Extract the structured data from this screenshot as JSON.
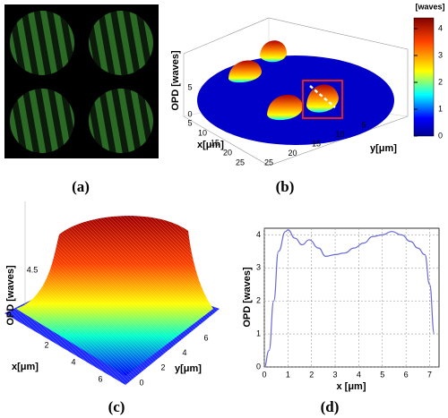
{
  "panels": [
    {
      "label": "(a)"
    },
    {
      "label": "(b)",
      "colorbar": {
        "title": "[waves]",
        "ticks": [
          0,
          1,
          2,
          3,
          4
        ]
      },
      "z_label": "OPD [waves]",
      "x_label": "x[μm]",
      "y_label": "y[μm]",
      "zticks": [
        0,
        5
      ],
      "xticks": [
        5,
        10,
        15,
        20,
        25
      ],
      "yticks": [
        5,
        10,
        15,
        20,
        25
      ]
    },
    {
      "label": "(c)",
      "z_label": "OPD [waves]",
      "x_label": "x[μm]",
      "y_label": "y[μm]",
      "zticks": [
        4.5
      ],
      "xticks": [
        2,
        4,
        6
      ],
      "yticks": [
        0,
        2,
        4,
        6
      ]
    },
    {
      "label": "(d)",
      "chart_data": {
        "type": "line",
        "x_label": "x [μm]",
        "y_label": "OPD [waves]",
        "color": "#6a6ad8",
        "x": [
          0,
          0.2,
          0.4,
          0.6,
          0.9,
          1.0,
          1.3,
          1.6,
          1.9,
          2.3,
          2.6,
          3.0,
          3.4,
          3.8,
          4.2,
          4.6,
          5.0,
          5.4,
          5.8,
          6.2,
          6.5,
          6.8,
          7.0,
          7.2
        ],
        "values": [
          0,
          0.5,
          2,
          3.5,
          4.1,
          4.15,
          3.9,
          3.7,
          3.85,
          3.6,
          3.35,
          3.4,
          3.45,
          3.6,
          3.75,
          3.95,
          4.0,
          4.1,
          4.0,
          3.8,
          3.6,
          3.4,
          2.5,
          1.0
        ],
        "xlim": [
          0,
          7.4
        ],
        "ylim": [
          0,
          4.2
        ],
        "xticks": [
          0,
          1,
          2,
          3,
          4,
          5,
          6,
          7
        ],
        "yticks": [
          0,
          1,
          2,
          3,
          4
        ],
        "grid": true
      }
    }
  ]
}
